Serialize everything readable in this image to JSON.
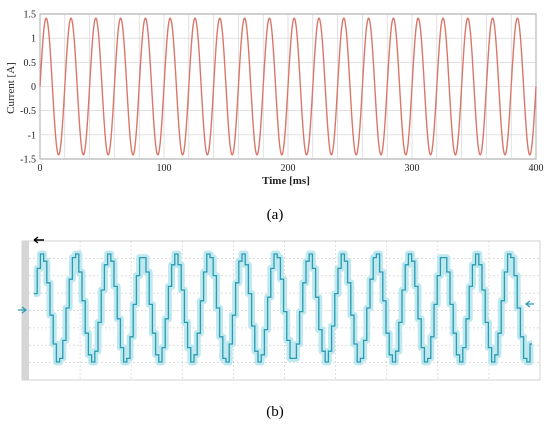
{
  "chart_data": [
    {
      "type": "line",
      "panel_label": "(a)",
      "title": "",
      "xlabel": "Time [ms]",
      "ylabel": "Current [A]",
      "xlim": [
        0,
        400
      ],
      "ylim": [
        -1.5,
        1.5
      ],
      "xticks": [
        "0",
        "100",
        "200",
        "300",
        "400"
      ],
      "yticks": [
        "1.5",
        "1",
        "0.5",
        "0",
        "-0.5",
        "-1",
        "-1.5"
      ],
      "grid": true,
      "series": [
        {
          "amplitude": 1.414,
          "frequency_hz": 50,
          "color": "#d9776b"
        }
      ]
    },
    {
      "type": "line",
      "panel_label": "(b)",
      "title": "",
      "xlabel": "",
      "ylabel": "",
      "cycles_visible": 15,
      "grid": true,
      "series": [
        {
          "color": "#2a9bb3"
        }
      ]
    }
  ],
  "colors": {
    "panel_a_line": "#d9776b",
    "panel_b_line": "#2a9bb3",
    "panel_b_halo": "#bfe9ef",
    "grid": "#c8c8c8"
  }
}
